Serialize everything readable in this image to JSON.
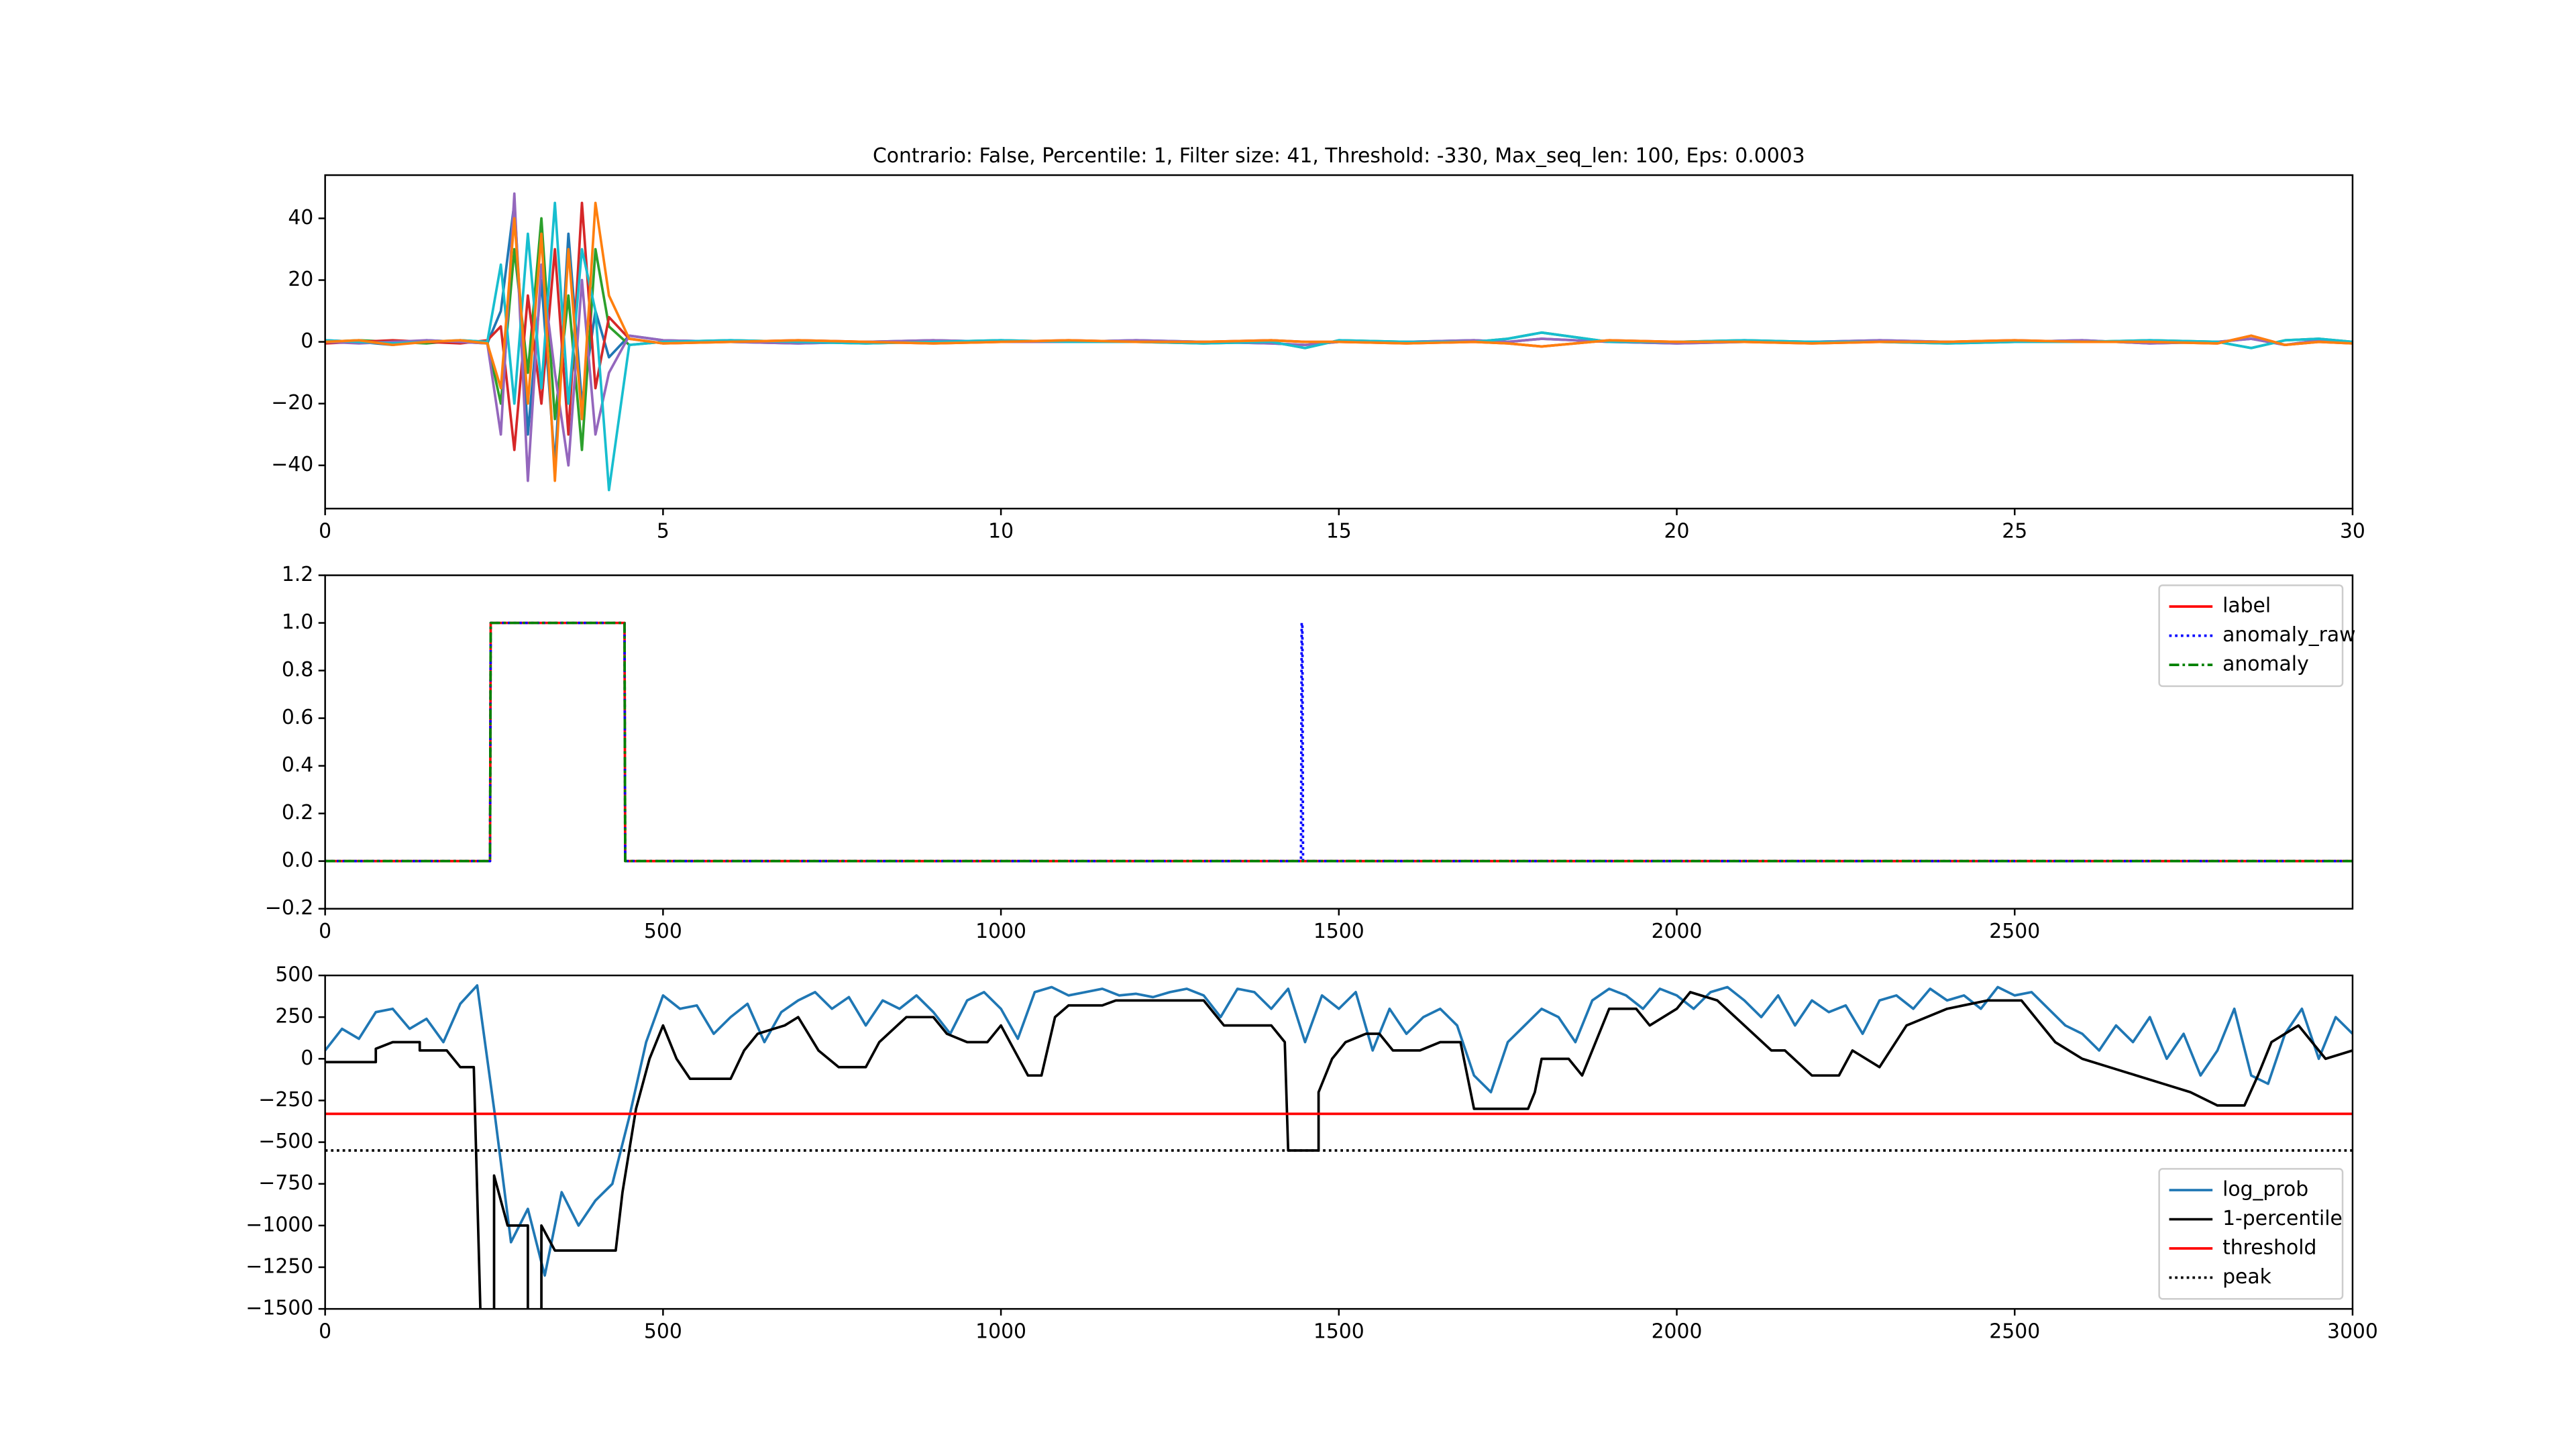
{
  "chart_data": [
    {
      "type": "line",
      "title": "Contrario: False, Percentile: 1, Filter size: 41, Threshold: -330, Max_seq_len: 100, Eps: 0.0003",
      "x": [
        0,
        0.5,
        1,
        1.5,
        2,
        2.4,
        2.6,
        2.8,
        3.0,
        3.2,
        3.4,
        3.6,
        3.8,
        4.0,
        4.2,
        4.5,
        5,
        6,
        7,
        8,
        9,
        10,
        11,
        12,
        13,
        14,
        14.5,
        15,
        16,
        17,
        17.5,
        18,
        19,
        20,
        21,
        22,
        23,
        24,
        25,
        26,
        27,
        28,
        28.5,
        29,
        29.5,
        30
      ],
      "xlim": [
        0,
        30
      ],
      "xticks": [
        0,
        5,
        10,
        15,
        20,
        25,
        30
      ],
      "ylim": [
        -54,
        54
      ],
      "yticks": [
        {
          "value": -40,
          "label": "−40"
        },
        {
          "value": -20,
          "label": "−20"
        },
        0,
        20,
        40
      ],
      "grid": false,
      "series": [
        {
          "color": "#1f77b4",
          "values": [
            0.5,
            0,
            -1,
            0.5,
            0,
            -0.5,
            10,
            45,
            -30,
            20,
            -40,
            35,
            -20,
            10,
            -5,
            2,
            0.5,
            0,
            -0.5,
            0,
            0.5,
            0,
            0,
            0.5,
            0,
            -0.5,
            -1,
            0,
            0,
            0.5,
            0,
            1,
            0,
            -0.5,
            0,
            0,
            0.5,
            0,
            0,
            0.5,
            -0.5,
            0,
            1,
            -1,
            0.5,
            0
          ]
        },
        {
          "color": "#2ca02c",
          "values": [
            0,
            0.5,
            0,
            -0.5,
            0.5,
            0,
            -20,
            30,
            -10,
            40,
            -25,
            15,
            -35,
            30,
            5,
            -1,
            0,
            0.5,
            0,
            -0.5,
            0,
            0.5,
            0,
            0,
            -0.5,
            0,
            -2,
            0.5,
            0,
            0,
            1,
            3,
            0,
            0,
            0.5,
            0,
            0,
            -0.5,
            0,
            0,
            0.5,
            0,
            -2,
            0.5,
            1,
            0
          ]
        },
        {
          "color": "#d62728",
          "values": [
            -0.5,
            0,
            0.5,
            0,
            -0.5,
            0.5,
            5,
            -35,
            15,
            -20,
            30,
            -30,
            45,
            -15,
            8,
            1,
            -0.5,
            0,
            0.5,
            0,
            -0.5,
            0,
            0.5,
            0,
            0,
            0.5,
            0,
            0,
            -0.5,
            0,
            -0.5,
            -1.5,
            0.5,
            0,
            0,
            -0.5,
            0,
            0,
            0.5,
            0,
            0,
            -0.5,
            2,
            -1,
            0,
            -0.5
          ]
        },
        {
          "color": "#9467bd",
          "values": [
            0,
            -0.5,
            0,
            0.5,
            0,
            -0.5,
            -30,
            48,
            -45,
            25,
            -10,
            -40,
            20,
            -30,
            -10,
            2,
            0.5,
            0,
            -0.5,
            0,
            0.5,
            0,
            0,
            0.5,
            0,
            -0.5,
            -1,
            0,
            0,
            0.5,
            0,
            1,
            0,
            -0.5,
            0,
            0,
            0.5,
            0,
            0,
            0.5,
            -0.5,
            0,
            1,
            -1,
            0.5,
            0
          ]
        },
        {
          "color": "#17becf",
          "values": [
            0.5,
            0,
            -0.5,
            0,
            0.5,
            0,
            25,
            -20,
            35,
            -15,
            45,
            -20,
            30,
            10,
            -48,
            -1,
            0,
            0.5,
            0,
            -0.5,
            0,
            0.5,
            0,
            0,
            -0.5,
            0,
            -2,
            0.5,
            0,
            0,
            1,
            3,
            0,
            0,
            0.5,
            0,
            0,
            -0.5,
            0,
            0,
            0.5,
            0,
            -2,
            0.5,
            1,
            0
          ]
        },
        {
          "color": "#ff7f0e",
          "values": [
            0,
            0.5,
            -1,
            0,
            0.5,
            -0.5,
            -15,
            40,
            -20,
            35,
            -45,
            30,
            -25,
            45,
            15,
            1,
            -0.5,
            0,
            0.5,
            0,
            -0.5,
            0,
            0.5,
            0,
            0,
            0.5,
            0,
            0,
            -0.5,
            0,
            -0.5,
            -1.5,
            0.5,
            0,
            0,
            -0.5,
            0,
            0,
            0.5,
            0,
            0,
            -0.5,
            2,
            -1,
            0,
            -0.5
          ]
        }
      ]
    },
    {
      "type": "line",
      "x": [
        0,
        244,
        245,
        443,
        444,
        1444,
        1445,
        1446,
        1447,
        3000
      ],
      "xlim": [
        0,
        3000
      ],
      "xticks": [
        0,
        500,
        1000,
        1500,
        2000,
        2500
      ],
      "ylim": [
        -0.2,
        1.2
      ],
      "yticks": [
        {
          "value": -0.2,
          "label": "−0.2"
        },
        {
          "value": 0,
          "label": "0.0"
        },
        0.2,
        0.4,
        0.6,
        0.8,
        {
          "value": 1,
          "label": "1.0"
        },
        1.2
      ],
      "grid": false,
      "legend": "upper right",
      "series": [
        {
          "name": "label",
          "color": "#ff0000",
          "values": [
            0,
            0,
            1,
            1,
            0,
            0,
            0,
            0,
            0,
            0
          ]
        },
        {
          "name": "anomaly_raw",
          "color": "#0000ff",
          "linestyle": "dotted",
          "values": [
            0,
            0,
            1,
            1,
            0,
            0,
            1,
            1,
            0,
            0
          ]
        },
        {
          "name": "anomaly",
          "color": "#008000",
          "linestyle": "dashdot",
          "values": [
            0,
            0,
            1,
            1,
            0,
            0,
            0,
            0,
            0,
            0
          ]
        }
      ]
    },
    {
      "type": "line",
      "x": [
        0,
        25,
        50,
        75,
        100,
        125,
        150,
        175,
        200,
        225,
        250,
        275,
        300,
        325,
        350,
        375,
        400,
        425,
        450,
        475,
        500,
        525,
        550,
        575,
        600,
        625,
        650,
        675,
        700,
        725,
        750,
        775,
        800,
        825,
        850,
        875,
        900,
        925,
        950,
        975,
        1000,
        1025,
        1050,
        1075,
        1100,
        1125,
        1150,
        1175,
        1200,
        1225,
        1250,
        1275,
        1300,
        1325,
        1350,
        1375,
        1400,
        1425,
        1450,
        1475,
        1500,
        1525,
        1550,
        1575,
        1600,
        1625,
        1650,
        1675,
        1700,
        1725,
        1750,
        1775,
        1800,
        1825,
        1850,
        1875,
        1900,
        1925,
        1950,
        1975,
        2000,
        2025,
        2050,
        2075,
        2100,
        2125,
        2150,
        2175,
        2200,
        2225,
        2250,
        2275,
        2300,
        2325,
        2350,
        2375,
        2400,
        2425,
        2450,
        2475,
        2500,
        2525,
        2550,
        2575,
        2600,
        2625,
        2650,
        2675,
        2700,
        2725,
        2750,
        2775,
        2800,
        2825,
        2850,
        2875,
        2900,
        2925,
        2950,
        2975,
        3000
      ],
      "xlim": [
        0,
        3000
      ],
      "xticks": [
        0,
        500,
        1000,
        1500,
        2000,
        2500,
        3000
      ],
      "ylim": [
        -1500,
        500
      ],
      "yticks": [
        {
          "value": -1500,
          "label": "−1500"
        },
        {
          "value": -1250,
          "label": "−1250"
        },
        {
          "value": -1000,
          "label": "−1000"
        },
        {
          "value": -750,
          "label": "−750"
        },
        {
          "value": -500,
          "label": "−500"
        },
        {
          "value": -250,
          "label": "−250"
        },
        0,
        250,
        500
      ],
      "grid": false,
      "legend": "lower right",
      "series": [
        {
          "name": "log_prob",
          "color": "#1f77b4",
          "values": [
            50,
            180,
            120,
            280,
            300,
            180,
            240,
            100,
            330,
            440,
            -300,
            -1100,
            -900,
            -1300,
            -800,
            -1000,
            -850,
            -750,
            -350,
            100,
            380,
            300,
            320,
            150,
            250,
            330,
            100,
            280,
            350,
            400,
            300,
            370,
            200,
            350,
            300,
            380,
            280,
            150,
            350,
            400,
            300,
            120,
            400,
            430,
            380,
            400,
            420,
            380,
            390,
            370,
            400,
            420,
            380,
            250,
            420,
            400,
            300,
            420,
            100,
            380,
            300,
            400,
            50,
            300,
            150,
            250,
            300,
            200,
            -100,
            -200,
            100,
            200,
            300,
            250,
            100,
            350,
            420,
            380,
            300,
            420,
            380,
            300,
            400,
            430,
            350,
            250,
            380,
            200,
            350,
            280,
            320,
            150,
            350,
            380,
            300,
            420,
            350,
            380,
            300,
            430,
            380,
            400,
            300,
            200,
            150,
            50,
            200,
            100,
            250,
            0,
            150,
            -100,
            50,
            300,
            -100,
            -150,
            150,
            300,
            0,
            250,
            150
          ]
        },
        {
          "name": "1-percentile",
          "color": "#000000",
          "x": [
            0,
            75,
            75,
            100,
            140,
            140,
            180,
            200,
            220,
            230,
            250,
            250,
            270,
            300,
            300,
            320,
            320,
            340,
            430,
            440,
            460,
            480,
            500,
            520,
            540,
            600,
            620,
            640,
            680,
            700,
            730,
            760,
            800,
            820,
            860,
            900,
            920,
            950,
            980,
            1000,
            1040,
            1060,
            1080,
            1100,
            1150,
            1170,
            1300,
            1330,
            1400,
            1420,
            1425,
            1470,
            1470,
            1490,
            1510,
            1540,
            1560,
            1580,
            1620,
            1650,
            1680,
            1700,
            1780,
            1790,
            1800,
            1840,
            1860,
            1880,
            1900,
            1940,
            1960,
            2000,
            2020,
            2060,
            2100,
            2140,
            2160,
            2200,
            2240,
            2260,
            2300,
            2340,
            2400,
            2460,
            2510,
            2560,
            2600,
            2640,
            2680,
            2720,
            2760,
            2800,
            2840,
            2860,
            2880,
            2920,
            2960,
            3000
          ],
          "values": [
            -20,
            -20,
            60,
            100,
            100,
            50,
            50,
            -50,
            -50,
            -1550,
            -1550,
            -700,
            -1000,
            -1000,
            -1550,
            -1550,
            -1000,
            -1150,
            -1150,
            -800,
            -300,
            0,
            200,
            0,
            -120,
            -120,
            50,
            150,
            200,
            250,
            50,
            -50,
            -50,
            100,
            250,
            250,
            150,
            100,
            100,
            200,
            -100,
            -100,
            250,
            320,
            320,
            350,
            350,
            200,
            200,
            100,
            -550,
            -550,
            -200,
            0,
            100,
            150,
            150,
            50,
            50,
            100,
            100,
            -300,
            -300,
            -200,
            0,
            0,
            -100,
            100,
            300,
            300,
            200,
            300,
            400,
            350,
            200,
            50,
            50,
            -100,
            -100,
            50,
            -50,
            200,
            300,
            350,
            350,
            100,
            0,
            -50,
            -100,
            -150,
            -200,
            -280,
            -280,
            -100,
            100,
            200,
            0,
            50
          ]
        },
        {
          "name": "threshold",
          "color": "#ff0000",
          "x": [
            0,
            3000
          ],
          "values": [
            -330,
            -330
          ]
        },
        {
          "name": "peak",
          "color": "#000000",
          "linestyle": "dotted",
          "x": [
            0,
            3000
          ],
          "values": [
            -550,
            -550
          ]
        }
      ]
    }
  ]
}
